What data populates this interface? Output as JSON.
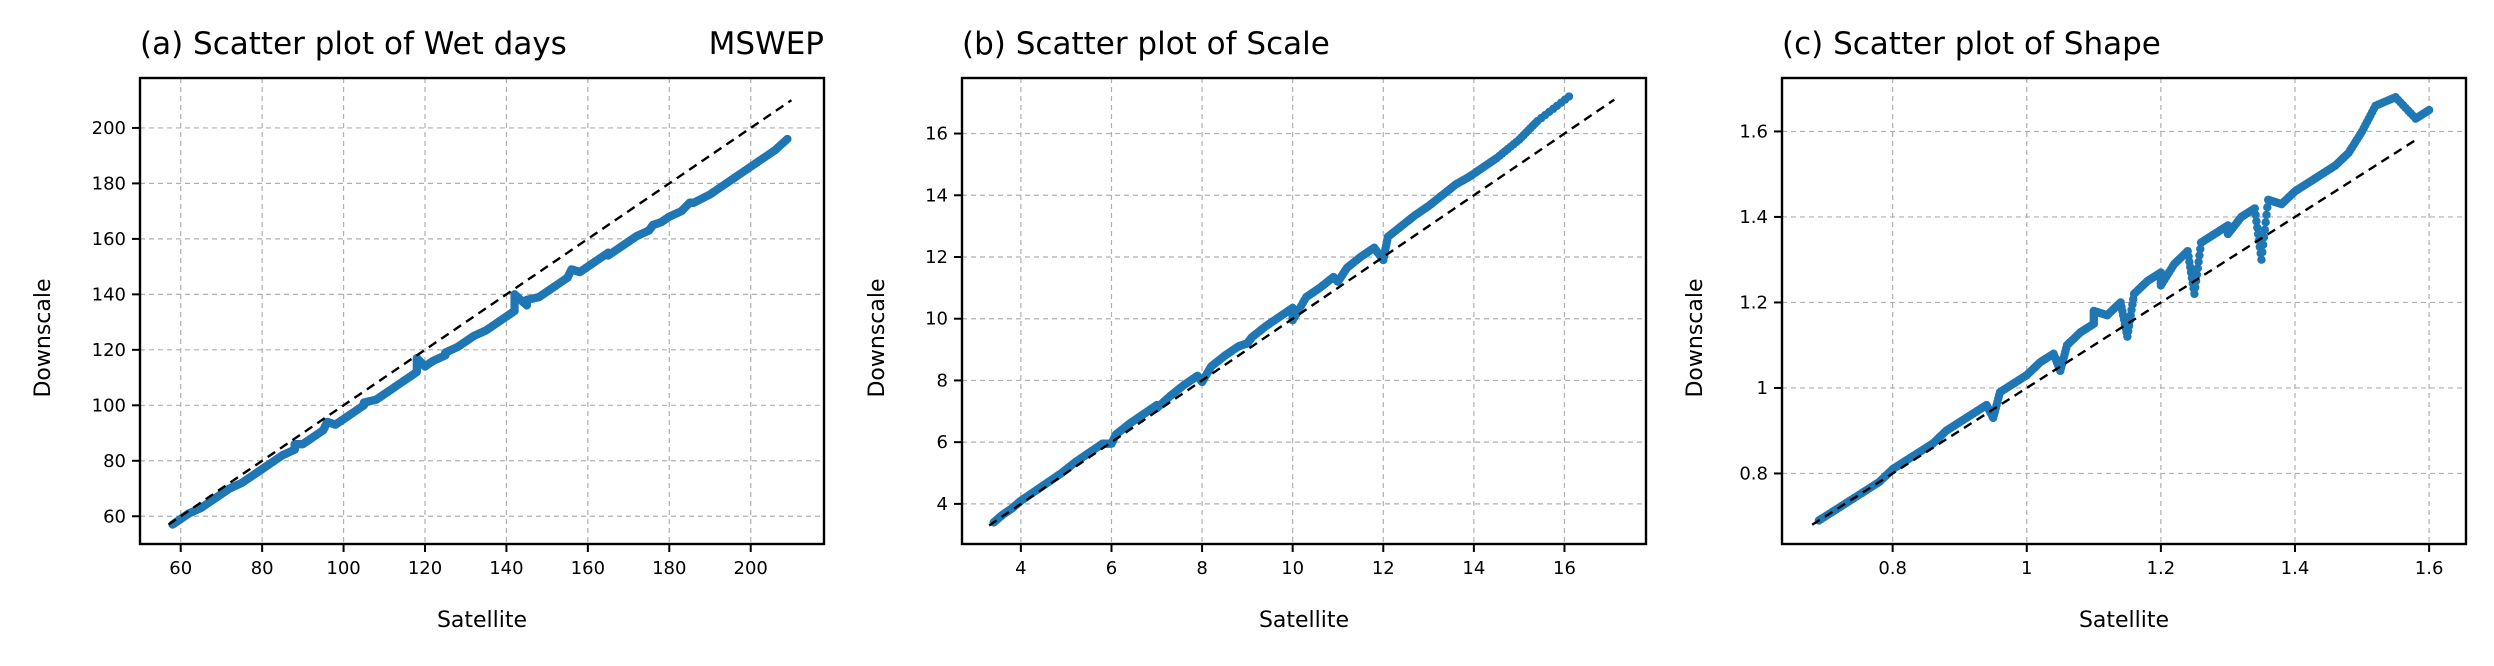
{
  "colors": {
    "points": "#1f77b4",
    "reference_line": "#000000",
    "grid": "#b0b0b0"
  },
  "chart_data": [
    {
      "type": "scatter",
      "title": "(a) Scatter plot of Wet days",
      "title_right": "MSWEP",
      "xlabel": "Satellite",
      "ylabel": "Downscale",
      "xlim": [
        50,
        218
      ],
      "ylim": [
        50,
        218
      ],
      "xticks": [
        60,
        80,
        100,
        120,
        140,
        160,
        180,
        200
      ],
      "yticks": [
        60,
        80,
        100,
        120,
        140,
        160,
        180,
        200
      ],
      "grid": true,
      "reference_line": {
        "x": [
          57,
          210
        ],
        "y": [
          57,
          210
        ]
      },
      "point_color": "#1f77b4",
      "points": {
        "x": [
          58,
          60,
          62,
          65,
          68,
          70,
          72,
          75,
          78,
          80,
          82,
          85,
          88,
          90,
          92,
          95,
          98,
          100,
          102,
          105,
          108,
          110,
          112,
          115,
          118,
          120,
          122,
          125,
          128,
          130,
          132,
          135,
          138,
          140,
          142,
          145,
          148,
          150,
          152,
          155,
          158,
          160,
          162,
          165,
          168,
          170,
          172,
          175,
          178,
          180,
          183,
          186,
          190,
          194,
          198,
          202,
          206,
          209,
          88,
          105,
          125,
          145,
          165,
          185,
          118,
          142,
          96,
          156,
          176
        ],
        "y": [
          57,
          59,
          61,
          63,
          66,
          68,
          70,
          72,
          75,
          77,
          79,
          82,
          84,
          86,
          88,
          91,
          93,
          95,
          97,
          100,
          102,
          104,
          106,
          109,
          112,
          114,
          116,
          118,
          121,
          123,
          125,
          127,
          130,
          132,
          134,
          136,
          139,
          141,
          143,
          146,
          148,
          150,
          152,
          155,
          157,
          159,
          161,
          163,
          166,
          168,
          170,
          173,
          176,
          180,
          184,
          188,
          192,
          196,
          86,
          101,
          119,
          138,
          154,
          173,
          117,
          140,
          94,
          149,
          165
        ]
      }
    },
    {
      "type": "scatter",
      "title": "(b) Scatter plot of Scale",
      "title_right": "",
      "xlabel": "Satellite",
      "ylabel": "Downscale",
      "xlim": [
        2.7,
        17.8
      ],
      "ylim": [
        2.7,
        17.8
      ],
      "xticks": [
        4,
        6,
        8,
        10,
        12,
        14,
        16
      ],
      "yticks": [
        4,
        6,
        8,
        10,
        12,
        14,
        16
      ],
      "grid": true,
      "reference_line": {
        "x": [
          3.3,
          17.1
        ],
        "y": [
          3.3,
          17.1
        ]
      },
      "point_color": "#1f77b4",
      "points": {
        "x": [
          3.4,
          3.6,
          3.8,
          4.0,
          4.3,
          4.6,
          4.9,
          5.2,
          5.5,
          5.8,
          6.1,
          6.4,
          6.7,
          7.0,
          7.3,
          7.6,
          7.9,
          8.2,
          8.5,
          8.8,
          9.1,
          9.4,
          9.7,
          10.0,
          10.3,
          10.6,
          10.9,
          11.2,
          11.5,
          11.8,
          12.1,
          12.4,
          12.7,
          13.0,
          13.3,
          13.6,
          13.9,
          14.2,
          14.5,
          15.0,
          15.4,
          16.1,
          6.0,
          8.0,
          10.0,
          12.0,
          7.0,
          9.0,
          11.0
        ],
        "y": [
          3.4,
          3.65,
          3.85,
          4.1,
          4.4,
          4.7,
          5.0,
          5.35,
          5.65,
          5.95,
          6.25,
          6.6,
          6.9,
          7.2,
          7.5,
          7.85,
          8.15,
          8.45,
          8.8,
          9.1,
          9.4,
          9.75,
          10.05,
          10.35,
          10.7,
          11.0,
          11.35,
          11.65,
          12.0,
          12.3,
          12.65,
          13.0,
          13.35,
          13.65,
          14.0,
          14.35,
          14.6,
          14.9,
          15.2,
          15.8,
          16.4,
          17.2,
          5.95,
          7.95,
          9.95,
          11.9,
          7.1,
          9.2,
          11.2
        ]
      }
    },
    {
      "type": "scatter",
      "title": "(c) Scatter plot of Shape",
      "title_right": "",
      "xlabel": "Satellite",
      "ylabel": "Downscale",
      "xlim": [
        0.635,
        1.655
      ],
      "ylim": [
        0.635,
        1.725
      ],
      "xticks": [
        0.8,
        1.0,
        1.2,
        1.4,
        1.6
      ],
      "yticks": [
        0.8,
        1.0,
        1.2,
        1.4,
        1.6
      ],
      "grid": true,
      "reference_line": {
        "x": [
          0.68,
          1.58
        ],
        "y": [
          0.68,
          1.58
        ]
      },
      "point_color": "#1f77b4",
      "points": {
        "x": [
          0.69,
          0.72,
          0.75,
          0.78,
          0.8,
          0.82,
          0.84,
          0.86,
          0.88,
          0.9,
          0.92,
          0.94,
          0.96,
          0.98,
          1.0,
          1.02,
          1.04,
          1.06,
          1.08,
          1.1,
          1.12,
          1.14,
          1.16,
          1.18,
          1.2,
          1.22,
          1.24,
          1.26,
          1.28,
          1.3,
          1.32,
          1.34,
          1.36,
          1.38,
          1.4,
          1.42,
          1.44,
          1.46,
          1.48,
          1.5,
          1.52,
          1.55,
          1.58,
          1.6,
          0.95,
          1.05,
          1.15,
          1.25,
          1.35,
          1.1,
          1.2,
          1.3
        ],
        "y": [
          0.69,
          0.72,
          0.75,
          0.78,
          0.81,
          0.83,
          0.85,
          0.87,
          0.9,
          0.92,
          0.94,
          0.96,
          0.99,
          1.01,
          1.03,
          1.06,
          1.08,
          1.1,
          1.13,
          1.15,
          1.17,
          1.2,
          1.22,
          1.25,
          1.27,
          1.29,
          1.32,
          1.34,
          1.36,
          1.38,
          1.4,
          1.42,
          1.44,
          1.43,
          1.46,
          1.48,
          1.5,
          1.52,
          1.55,
          1.6,
          1.66,
          1.68,
          1.63,
          1.65,
          0.93,
          1.04,
          1.12,
          1.22,
          1.3,
          1.18,
          1.24,
          1.36
        ]
      }
    }
  ]
}
